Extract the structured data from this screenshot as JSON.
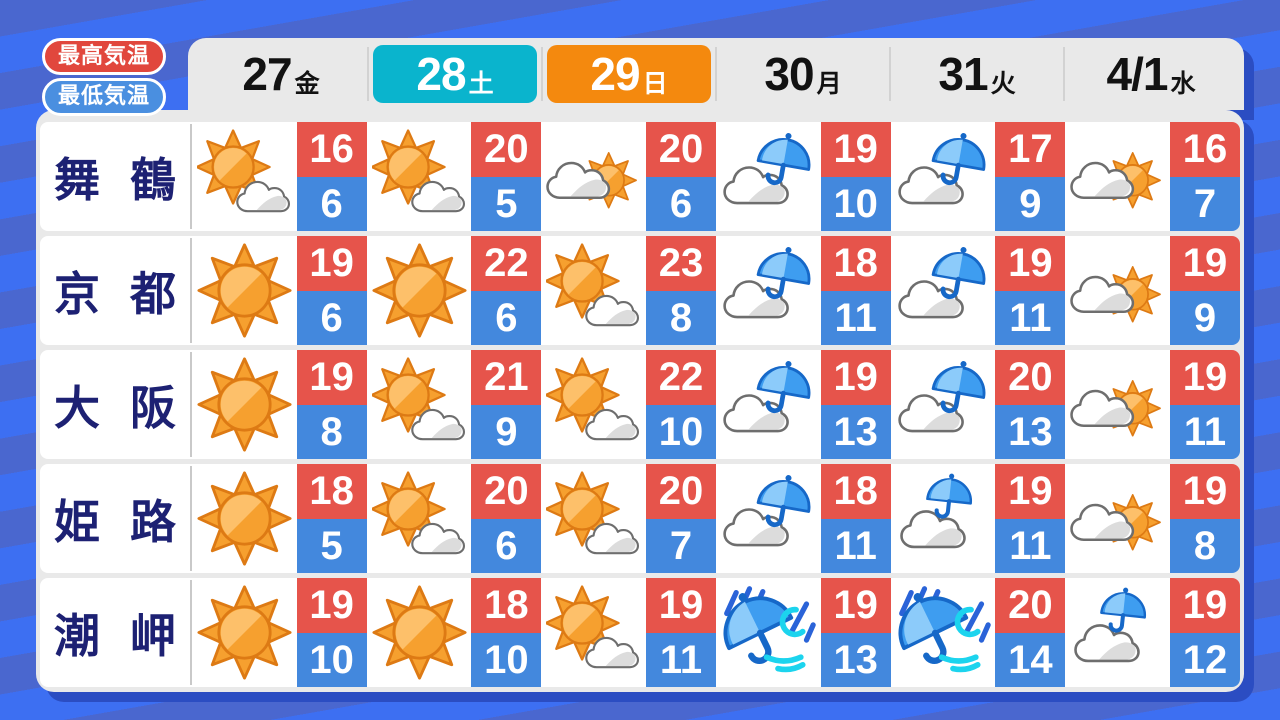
{
  "legend": {
    "high_label": "最高気温",
    "low_label": "最低気温"
  },
  "colors": {
    "background_stripe_a": "#4a67cf",
    "background_stripe_b": "#3d6ff2",
    "panel_shadow": "#2b4dc2",
    "panel_bg": "#e9e9e9",
    "row_bg": "#ffffff",
    "high_temp_bg": "#e6544b",
    "low_temp_bg": "#4388dd",
    "saturday_bg": "#0ab4cd",
    "sunday_bg": "#f4890e",
    "legend_high_bg": "#e1473d",
    "legend_low_bg": "#4a8fe0",
    "city_text": "#1d2173"
  },
  "chart_data": {
    "type": "table",
    "columns": [
      {
        "date": "27",
        "weekday": "金",
        "highlight": "weekday"
      },
      {
        "date": "28",
        "weekday": "土",
        "highlight": "saturday"
      },
      {
        "date": "29",
        "weekday": "日",
        "highlight": "sunday"
      },
      {
        "date": "30",
        "weekday": "月",
        "highlight": "weekday"
      },
      {
        "date": "31",
        "weekday": "火",
        "highlight": "weekday"
      },
      {
        "date": "4/1",
        "weekday": "水",
        "highlight": "weekday"
      }
    ],
    "rows": [
      {
        "city": "舞鶴",
        "cells": [
          {
            "weather": "sun-cloud",
            "high": 16,
            "low": 6
          },
          {
            "weather": "sun-cloud",
            "high": 20,
            "low": 5
          },
          {
            "weather": "cloud-sun",
            "high": 20,
            "low": 6
          },
          {
            "weather": "cloud-rain",
            "high": 19,
            "low": 10
          },
          {
            "weather": "cloud-rain",
            "high": 17,
            "low": 9
          },
          {
            "weather": "cloud-sun",
            "high": 16,
            "low": 7
          }
        ]
      },
      {
        "city": "京都",
        "cells": [
          {
            "weather": "sun",
            "high": 19,
            "low": 6
          },
          {
            "weather": "sun",
            "high": 22,
            "low": 6
          },
          {
            "weather": "sun-cloud",
            "high": 23,
            "low": 8
          },
          {
            "weather": "cloud-rain",
            "high": 18,
            "low": 11
          },
          {
            "weather": "cloud-rain",
            "high": 19,
            "low": 11
          },
          {
            "weather": "cloud-sun",
            "high": 19,
            "low": 9
          }
        ]
      },
      {
        "city": "大阪",
        "cells": [
          {
            "weather": "sun",
            "high": 19,
            "low": 8
          },
          {
            "weather": "sun-cloud",
            "high": 21,
            "low": 9
          },
          {
            "weather": "sun-cloud",
            "high": 22,
            "low": 10
          },
          {
            "weather": "cloud-rain",
            "high": 19,
            "low": 13
          },
          {
            "weather": "cloud-rain",
            "high": 20,
            "low": 13
          },
          {
            "weather": "cloud-sun",
            "high": 19,
            "low": 11
          }
        ]
      },
      {
        "city": "姫路",
        "cells": [
          {
            "weather": "sun",
            "high": 18,
            "low": 5
          },
          {
            "weather": "sun-cloud",
            "high": 20,
            "low": 6
          },
          {
            "weather": "sun-cloud",
            "high": 20,
            "low": 7
          },
          {
            "weather": "cloud-rain",
            "high": 18,
            "low": 11
          },
          {
            "weather": "rain-cloud",
            "high": 19,
            "low": 11
          },
          {
            "weather": "cloud-sun",
            "high": 19,
            "low": 8
          }
        ]
      },
      {
        "city": "潮岬",
        "cells": [
          {
            "weather": "sun",
            "high": 19,
            "low": 10
          },
          {
            "weather": "sun",
            "high": 18,
            "low": 10
          },
          {
            "weather": "sun-cloud",
            "high": 19,
            "low": 11
          },
          {
            "weather": "rain-wind",
            "high": 19,
            "low": 13
          },
          {
            "weather": "rain-wind",
            "high": 20,
            "low": 14
          },
          {
            "weather": "rain-cloud",
            "high": 19,
            "low": 12
          }
        ]
      }
    ]
  }
}
